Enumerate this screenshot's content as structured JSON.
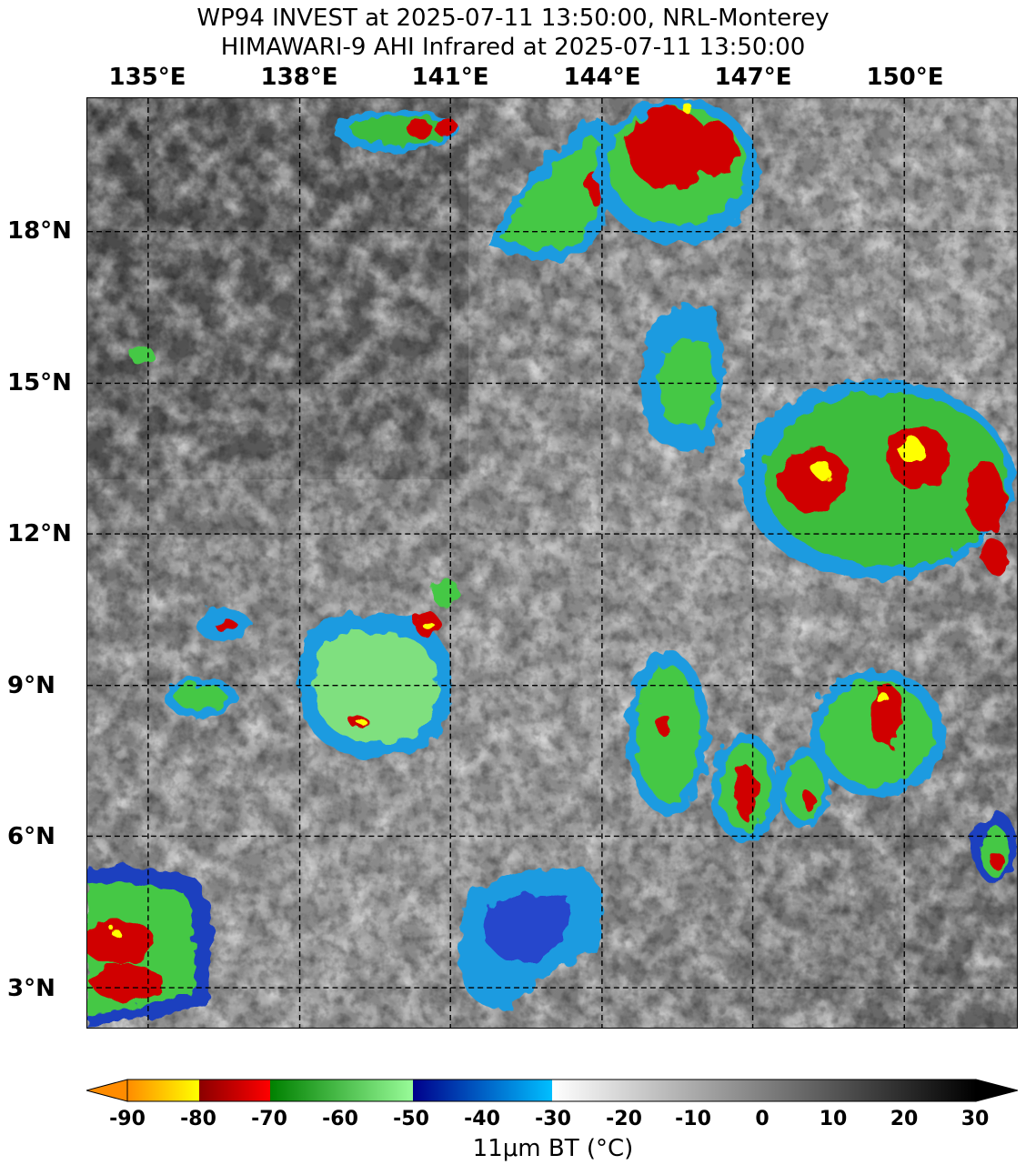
{
  "title": {
    "line1": "WP94 INVEST at 2025-07-11 13:50:00, NRL-Monterey",
    "line2": "HIMAWARI-9 AHI Infrared at 2025-07-11 13:50:00"
  },
  "map": {
    "lon_labels": [
      "135°E",
      "138°E",
      "141°E",
      "144°E",
      "147°E",
      "150°E"
    ],
    "lat_labels": [
      "18°N",
      "15°N",
      "12°N",
      "9°N",
      "6°N",
      "3°N"
    ],
    "gridlines": "dashed black"
  },
  "colorbar": {
    "label": "11μm BT (°C)",
    "tick_labels": [
      "-90",
      "-80",
      "-70",
      "-60",
      "-50",
      "-40",
      "-30",
      "-20",
      "-10",
      "0",
      "10",
      "20",
      "30"
    ],
    "colors": {
      "orange_yellow": [
        "#ff8c00",
        "#ffff00"
      ],
      "red": [
        "#8b0000",
        "#ff0000"
      ],
      "green": [
        "#008000",
        "#98fb98"
      ],
      "blue": [
        "#00008b",
        "#00bfff"
      ],
      "gray": [
        "#ffffff",
        "#000000"
      ]
    }
  }
}
